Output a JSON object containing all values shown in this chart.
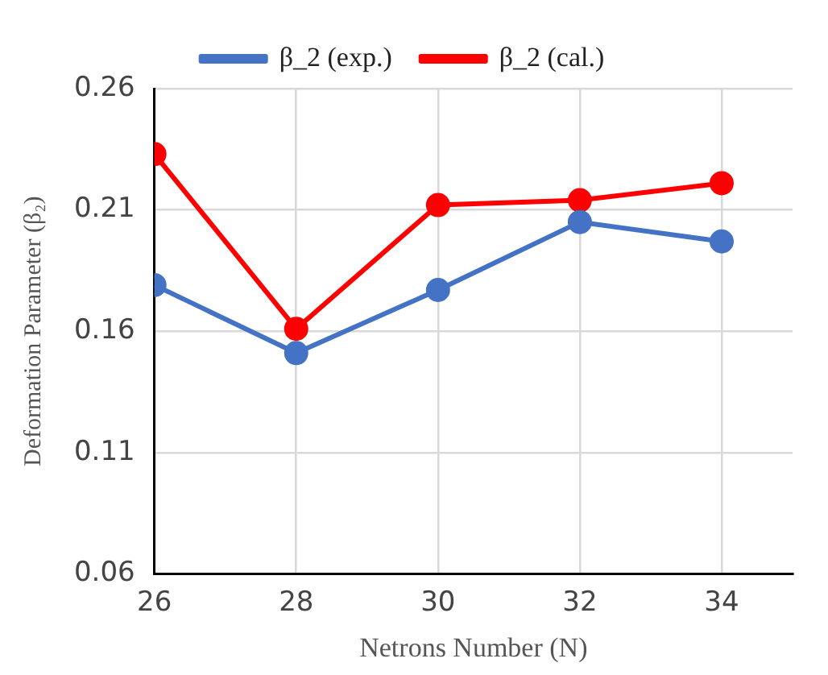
{
  "chart_data": {
    "type": "line",
    "xlabel": "Netrons Number (N)",
    "ylabel": "Deformation Parameter (β₂)",
    "x": [
      26,
      28,
      30,
      32,
      34
    ],
    "series": [
      {
        "name": "β_2 (exp.)",
        "color": "#4472c4",
        "values": [
          0.179,
          0.151,
          0.177,
          0.205,
          0.197
        ]
      },
      {
        "name": "β_2 (cal.)",
        "color": "#ff0000",
        "values": [
          0.233,
          0.161,
          0.212,
          0.214,
          0.221
        ]
      }
    ],
    "xlim": [
      26,
      35
    ],
    "xticks": [
      26,
      28,
      30,
      32,
      34
    ],
    "ylim": [
      0.06,
      0.26
    ],
    "yticks": [
      0.06,
      0.11,
      0.16,
      0.21,
      0.26
    ],
    "grid": true,
    "legend": "top",
    "marker": "circle",
    "line_style": "solid"
  }
}
